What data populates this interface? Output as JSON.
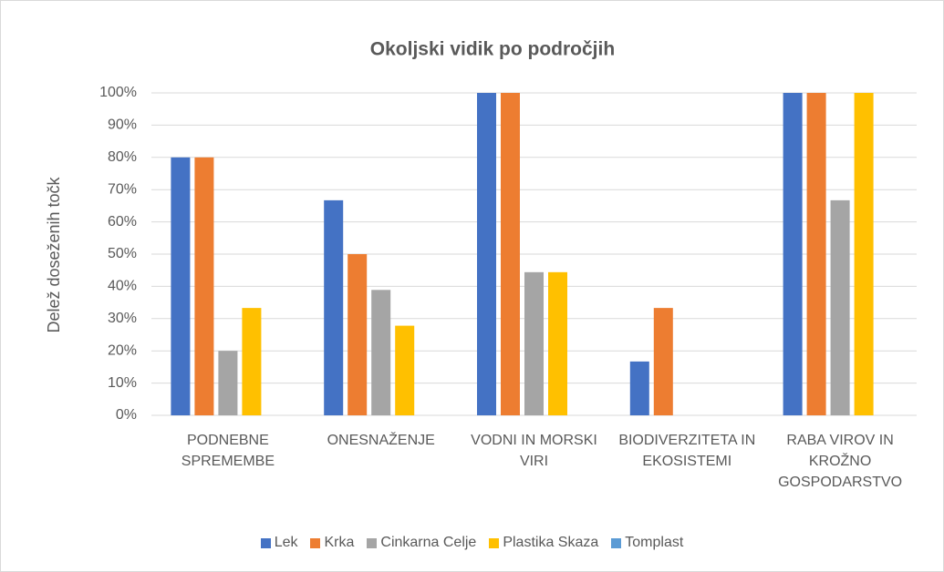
{
  "chart_data": {
    "type": "bar",
    "title": "Okoljski vidik po področjih",
    "y_axis_label": "Delež doseženih točk",
    "categories": [
      "PODNEBNE SPREMEMBE",
      "ONESNAŽENJE",
      "VODNI IN MORSKI VIRI",
      "BIODIVERZITETA IN EKOSISTEMI",
      "RABA VIROV IN KROŽNO GOSPODARSTVO"
    ],
    "series": [
      {
        "name": "Lek",
        "color": "#4472c4",
        "values": [
          80,
          66.7,
          100,
          16.7,
          100
        ]
      },
      {
        "name": "Krka",
        "color": "#ed7d31",
        "values": [
          80,
          50,
          100,
          33.3,
          100
        ]
      },
      {
        "name": "Cinkarna Celje",
        "color": "#a5a5a5",
        "values": [
          20,
          38.9,
          44.4,
          0,
          66.7
        ]
      },
      {
        "name": "Plastika Skaza",
        "color": "#ffc000",
        "values": [
          33.3,
          27.8,
          44.4,
          0,
          100
        ]
      },
      {
        "name": "Tomplast",
        "color": "#5b9bd5",
        "values": [
          0,
          0,
          0,
          0,
          0
        ]
      }
    ],
    "ylim": [
      0,
      100
    ],
    "yticks": [
      {
        "value": 0,
        "label": "0%"
      },
      {
        "value": 10,
        "label": "10%"
      },
      {
        "value": 20,
        "label": "20%"
      },
      {
        "value": 30,
        "label": "30%"
      },
      {
        "value": 40,
        "label": "40%"
      },
      {
        "value": 50,
        "label": "50%"
      },
      {
        "value": 60,
        "label": "60%"
      },
      {
        "value": 70,
        "label": "70%"
      },
      {
        "value": 80,
        "label": "80%"
      },
      {
        "value": 90,
        "label": "90%"
      },
      {
        "value": 100,
        "label": "100%"
      }
    ],
    "grid": true,
    "legend": "bottom"
  }
}
